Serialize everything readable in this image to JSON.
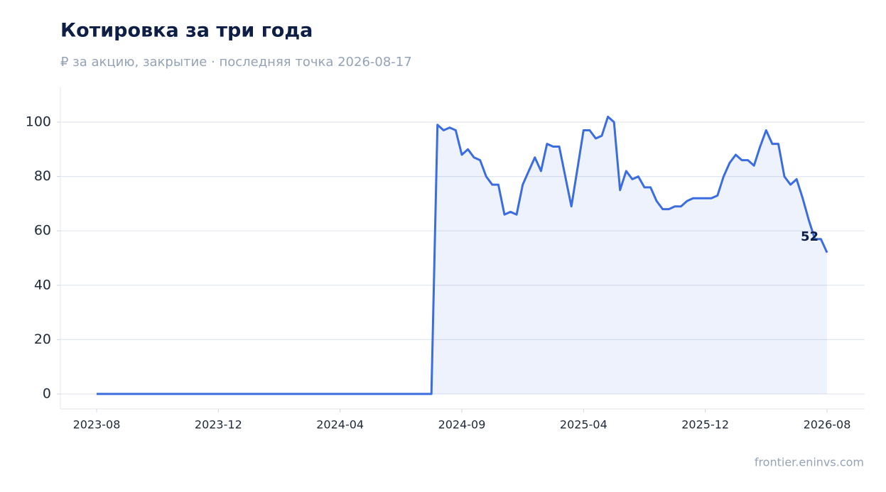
{
  "chart_data": {
    "type": "line",
    "title": "Котировка за три года",
    "subtitle": "₽ за акцию, закрытие · последняя точка 2026-08-17",
    "source": "frontier.eninvs.com",
    "categories": [
      "2023-08",
      null,
      null,
      null,
      null,
      null,
      null,
      null,
      null,
      null,
      null,
      null,
      null,
      null,
      null,
      null,
      null,
      null,
      null,
      null,
      "2023-12",
      null,
      null,
      null,
      null,
      null,
      null,
      null,
      null,
      null,
      null,
      null,
      null,
      null,
      null,
      null,
      null,
      null,
      null,
      null,
      "2024-04",
      null,
      null,
      null,
      null,
      null,
      null,
      null,
      null,
      null,
      null,
      null,
      null,
      null,
      null,
      null,
      null,
      null,
      null,
      null,
      "2024-09",
      null,
      null,
      null,
      null,
      null,
      null,
      null,
      null,
      null,
      null,
      null,
      null,
      null,
      null,
      null,
      null,
      null,
      null,
      null,
      "2025-04",
      null,
      null,
      null,
      null,
      null,
      null,
      null,
      null,
      null,
      null,
      null,
      null,
      null,
      null,
      null,
      null,
      null,
      null,
      null,
      "2025-12",
      null,
      null,
      null,
      null,
      null,
      null,
      null,
      null,
      null,
      null,
      null,
      null,
      null,
      null,
      null,
      null,
      null,
      null,
      null,
      "2026-08"
    ],
    "values": [
      0,
      0,
      0,
      0,
      0,
      0,
      0,
      0,
      0,
      0,
      0,
      0,
      0,
      0,
      0,
      0,
      0,
      0,
      0,
      0,
      0,
      0,
      0,
      0,
      0,
      0,
      0,
      0,
      0,
      0,
      0,
      0,
      0,
      0,
      0,
      0,
      0,
      0,
      0,
      0,
      0,
      0,
      0,
      0,
      0,
      0,
      0,
      0,
      0,
      0,
      0,
      0,
      0,
      0,
      0,
      0,
      99,
      97,
      98,
      97,
      88,
      90,
      87,
      86,
      80,
      77,
      77,
      66,
      67,
      66,
      77,
      82,
      87,
      82,
      92,
      91,
      91,
      80,
      69,
      83,
      97,
      97,
      94,
      95,
      102,
      100,
      75,
      82,
      79,
      80,
      76,
      76,
      71,
      68,
      68,
      69,
      69,
      71,
      72,
      72,
      72,
      72,
      73,
      80,
      85,
      88,
      86,
      86,
      84,
      91,
      97,
      92,
      92,
      80,
      77,
      79,
      72,
      64,
      57,
      57,
      52
    ],
    "color": "#3b6ce0",
    "ylim": [
      -5.5,
      112.8
    ],
    "yticks": [
      0,
      20,
      40,
      60,
      80,
      100
    ],
    "grid": true
  }
}
